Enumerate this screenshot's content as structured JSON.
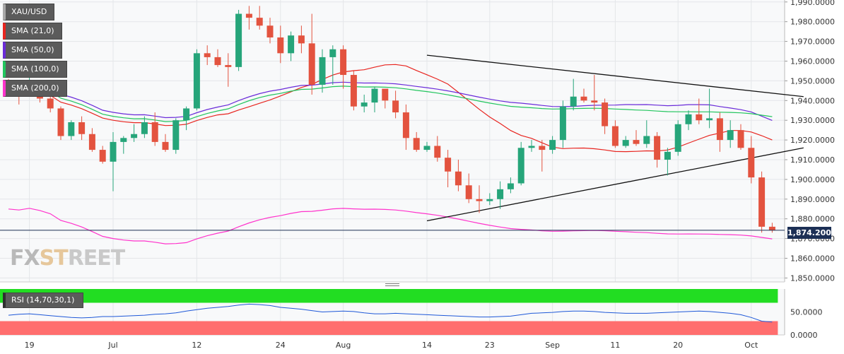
{
  "chart_data": {
    "type": "candlestick",
    "symbol": "XAU/USD",
    "current_price_label": "1,874.2000",
    "current_price": 1874.2,
    "indicators": [
      {
        "label": "SMA (21,0)",
        "color": "#e8241f"
      },
      {
        "label": "SMA (50,0)",
        "color": "#6a2bd9"
      },
      {
        "label": "SMA (100,0)",
        "color": "#22c55e"
      },
      {
        "label": "SMA (200,0)",
        "color": "#ff33cc"
      }
    ],
    "y_axis": {
      "min": 1848,
      "max": 1991,
      "ticks": [
        "1,990.0000",
        "1,980.0000",
        "1,970.0000",
        "1,960.0000",
        "1,950.0000",
        "1,940.0000",
        "1,930.0000",
        "1,920.0000",
        "1,910.0000",
        "1,900.0000",
        "1,890.0000",
        "1,880.0000",
        "1,870.0000",
        "1,860.0000",
        "1,850.0000"
      ],
      "tick_values": [
        1990,
        1980,
        1970,
        1960,
        1950,
        1940,
        1930,
        1920,
        1910,
        1900,
        1890,
        1880,
        1870,
        1860,
        1850
      ]
    },
    "x_axis": {
      "labels": [
        "19",
        "Jul",
        "12",
        "24",
        "Aug",
        "14",
        "23",
        "Sep",
        "11",
        "20",
        "Oct"
      ],
      "label_index": [
        2,
        10,
        18,
        26,
        32,
        40,
        46,
        52,
        58,
        64,
        71
      ]
    },
    "candles": [
      [
        1948,
        1951,
        1942,
        1945
      ],
      [
        1945,
        1946,
        1938,
        1944
      ],
      [
        1944,
        1952,
        1943,
        1947
      ],
      [
        1947,
        1948,
        1939,
        1941
      ],
      [
        1941,
        1943,
        1934,
        1936
      ],
      [
        1936,
        1937,
        1920,
        1922
      ],
      [
        1922,
        1930,
        1920,
        1929
      ],
      [
        1929,
        1932,
        1920,
        1923
      ],
      [
        1923,
        1926,
        1914,
        1915
      ],
      [
        1915,
        1917,
        1908,
        1909
      ],
      [
        1909,
        1924,
        1894,
        1919
      ],
      [
        1919,
        1922,
        1913,
        1921
      ],
      [
        1921,
        1928,
        1919,
        1923
      ],
      [
        1923,
        1932,
        1921,
        1929
      ],
      [
        1929,
        1934,
        1917,
        1919
      ],
      [
        1919,
        1923,
        1914,
        1915
      ],
      [
        1915,
        1931,
        1913,
        1930
      ],
      [
        1930,
        1937,
        1925,
        1936
      ],
      [
        1936,
        1966,
        1935,
        1964
      ],
      [
        1964,
        1968,
        1958,
        1962
      ],
      [
        1962,
        1966,
        1957,
        1958
      ],
      [
        1958,
        1964,
        1947,
        1957
      ],
      [
        1957,
        1986,
        1955,
        1984
      ],
      [
        1984,
        1988,
        1976,
        1982
      ],
      [
        1982,
        1988,
        1976,
        1978
      ],
      [
        1978,
        1982,
        1969,
        1972
      ],
      [
        1972,
        1978,
        1959,
        1964
      ],
      [
        1964,
        1975,
        1960,
        1973
      ],
      [
        1973,
        1978,
        1964,
        1969
      ],
      [
        1969,
        1984,
        1943,
        1948
      ],
      [
        1948,
        1966,
        1944,
        1962
      ],
      [
        1962,
        1968,
        1948,
        1966
      ],
      [
        1966,
        1968,
        1946,
        1953
      ],
      [
        1953,
        1955,
        1935,
        1937
      ],
      [
        1937,
        1943,
        1934,
        1939
      ],
      [
        1939,
        1947,
        1934,
        1946
      ],
      [
        1946,
        1946,
        1936,
        1940
      ],
      [
        1940,
        1945,
        1931,
        1934
      ],
      [
        1934,
        1938,
        1915,
        1921
      ],
      [
        1921,
        1924,
        1914,
        1915
      ],
      [
        1915,
        1919,
        1914,
        1917
      ],
      [
        1917,
        1922,
        1909,
        1911
      ],
      [
        1911,
        1915,
        1896,
        1904
      ],
      [
        1904,
        1910,
        1894,
        1897
      ],
      [
        1897,
        1903,
        1888,
        1890
      ],
      [
        1890,
        1897,
        1883,
        1889
      ],
      [
        1889,
        1893,
        1887,
        1890
      ],
      [
        1890,
        1899,
        1885,
        1895
      ],
      [
        1895,
        1901,
        1893,
        1898
      ],
      [
        1898,
        1919,
        1897,
        1916
      ],
      [
        1916,
        1920,
        1914,
        1917
      ],
      [
        1917,
        1920,
        1904,
        1915
      ],
      [
        1915,
        1922,
        1913,
        1920
      ],
      [
        1920,
        1940,
        1916,
        1937
      ],
      [
        1937,
        1951,
        1935,
        1942
      ],
      [
        1942,
        1946,
        1939,
        1940
      ],
      [
        1940,
        1953,
        1935,
        1939
      ],
      [
        1939,
        1941,
        1923,
        1927
      ],
      [
        1927,
        1930,
        1916,
        1917
      ],
      [
        1917,
        1922,
        1916,
        1920
      ],
      [
        1920,
        1925,
        1917,
        1918
      ],
      [
        1918,
        1930,
        1916,
        1922
      ],
      [
        1922,
        1924,
        1906,
        1910
      ],
      [
        1910,
        1916,
        1902,
        1914
      ],
      [
        1914,
        1930,
        1912,
        1928
      ],
      [
        1928,
        1935,
        1925,
        1933
      ],
      [
        1933,
        1941,
        1928,
        1930
      ],
      [
        1930,
        1946,
        1926,
        1931
      ],
      [
        1931,
        1934,
        1914,
        1920
      ],
      [
        1920,
        1930,
        1916,
        1925
      ],
      [
        1925,
        1928,
        1915,
        1916
      ],
      [
        1916,
        1922,
        1898,
        1901
      ],
      [
        1901,
        1904,
        1873,
        1876
      ],
      [
        1876,
        1878,
        1873,
        1874.2
      ]
    ],
    "trendlines": [
      {
        "from": [
          40,
          1963
        ],
        "to": [
          76,
          1942
        ]
      },
      {
        "from": [
          40,
          1879
        ],
        "to": [
          76,
          1916
        ]
      }
    ],
    "rsi": {
      "label": "RSI (14,70,30,1)",
      "axis_ticks": [
        "50.0000",
        "0.0000"
      ],
      "upper_band_color": "#22dd22",
      "lower_band_color": "#ff6e6e",
      "values": [
        43,
        45,
        46,
        44,
        42,
        40,
        38,
        37,
        38,
        40,
        40,
        41,
        42,
        43,
        45,
        46,
        48,
        52,
        55,
        58,
        60,
        62,
        65,
        67,
        66,
        64,
        60,
        58,
        56,
        53,
        50,
        51,
        52,
        51,
        48,
        46,
        46,
        47,
        46,
        45,
        44,
        43,
        42,
        41,
        40,
        39,
        39,
        40,
        41,
        44,
        47,
        48,
        49,
        51,
        52,
        52,
        51,
        49,
        48,
        47,
        47,
        47,
        48,
        49,
        50,
        51,
        52,
        51,
        49,
        47,
        44,
        38,
        30,
        28
      ],
      "min": 0,
      "max": 100
    }
  }
}
